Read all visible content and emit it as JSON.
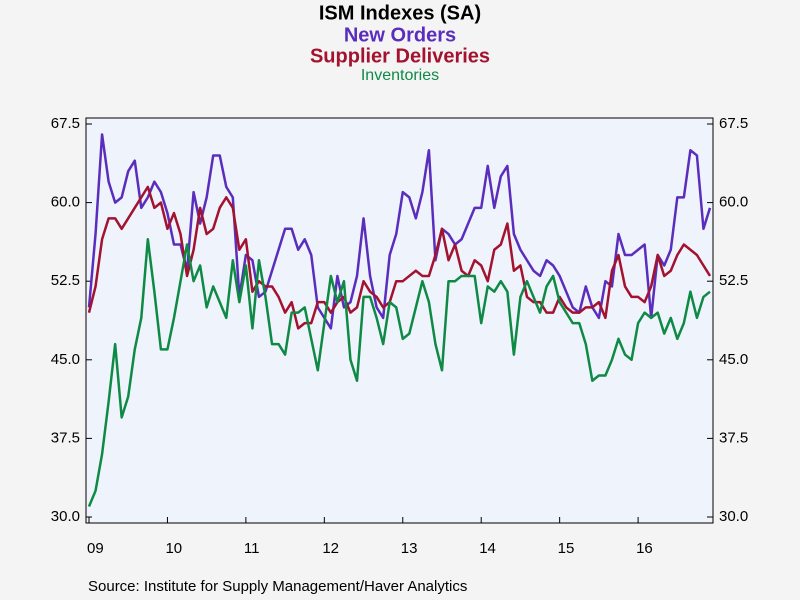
{
  "chart_data": {
    "type": "line",
    "title": "ISM Indexes (SA)",
    "source": "Source:  Institute for Supply Management/Haver Analytics",
    "categories": [
      "09",
      null,
      null,
      null,
      null,
      null,
      null,
      null,
      null,
      null,
      null,
      null,
      "10",
      null,
      null,
      null,
      null,
      null,
      null,
      null,
      null,
      null,
      null,
      null,
      "11",
      null,
      null,
      null,
      null,
      null,
      null,
      null,
      null,
      null,
      null,
      null,
      "12",
      null,
      null,
      null,
      null,
      null,
      null,
      null,
      null,
      null,
      null,
      null,
      "13",
      null,
      null,
      null,
      null,
      null,
      null,
      null,
      null,
      null,
      null,
      null,
      "14",
      null,
      null,
      null,
      null,
      null,
      null,
      null,
      null,
      null,
      null,
      null,
      "15",
      null,
      null,
      null,
      null,
      null,
      null,
      null,
      null,
      null,
      null,
      null,
      "16",
      null,
      null,
      null,
      null,
      null,
      null,
      null,
      null,
      null,
      null,
      null
    ],
    "series": [
      {
        "name": "New Orders",
        "color": "#5a2dbd",
        "values": [
          50,
          57,
          66.5,
          62,
          60,
          60.5,
          63,
          64,
          59.5,
          60.5,
          62,
          61,
          59,
          56,
          56,
          53.5,
          61,
          58,
          60.5,
          64.5,
          64.5,
          61.5,
          60.5,
          51,
          55,
          54.5,
          51,
          51.5,
          53.5,
          55.5,
          57.5,
          57.5,
          55.5,
          56.5,
          55,
          50,
          49,
          48,
          53,
          50,
          50.5,
          53,
          58.5,
          53,
          50,
          49,
          55,
          57,
          61,
          60.5,
          58.5,
          61,
          65,
          54.5,
          57.5,
          57,
          56,
          56.5,
          58,
          59.5,
          59.5,
          63.5,
          59.5,
          62.5,
          63.5,
          57,
          55.5,
          54.5,
          53.5,
          53,
          54.5,
          54,
          53,
          51.5,
          50,
          49.5,
          52,
          50,
          49,
          52.5,
          52,
          57,
          55,
          55,
          55.5,
          56,
          49,
          55,
          54,
          55.5,
          60.5,
          60.5,
          65,
          64.5,
          57.5,
          59.5
        ]
      },
      {
        "name": "Supplier Deliveries",
        "color": "#a3122e",
        "values": [
          49.5,
          52,
          56.5,
          58.5,
          58.5,
          57.5,
          58.5,
          59.5,
          60.5,
          61.5,
          59.5,
          60,
          57.5,
          59,
          57,
          53,
          55.5,
          59.5,
          57,
          57.5,
          59.5,
          60.5,
          59.5,
          55.5,
          56.5,
          51.5,
          52.5,
          52,
          52,
          51,
          49.5,
          50.5,
          48,
          48.5,
          48.5,
          50.5,
          50.5,
          49.5,
          50.5,
          51,
          49.5,
          50,
          52.5,
          51.5,
          51,
          50,
          50.5,
          52.5,
          52.5,
          53,
          53.5,
          53,
          53,
          55,
          57.5,
          54.5,
          56,
          53.5,
          53,
          54.5,
          54,
          52.5,
          55.5,
          56,
          58,
          53.5,
          54,
          51,
          50.5,
          50.5,
          49.5,
          49.5,
          51,
          50,
          49.5,
          49.5,
          50,
          50,
          50.5,
          49,
          53.5,
          55,
          52,
          51,
          51,
          50.5,
          52,
          55,
          53,
          53.5,
          55,
          56,
          55.5,
          55,
          54,
          53
        ]
      },
      {
        "name": "Inventories",
        "color": "#0f8a45",
        "values": [
          31,
          32.5,
          36,
          41,
          46.5,
          39.5,
          41.5,
          46,
          49,
          56.5,
          51.5,
          46,
          46,
          49,
          52.5,
          56,
          52.5,
          54,
          50,
          52,
          50.5,
          49,
          54.5,
          50.5,
          54,
          48,
          54.5,
          51,
          46.5,
          46.5,
          45.5,
          49.5,
          49.5,
          50,
          47,
          44,
          48.5,
          53,
          50.5,
          52.5,
          45,
          43,
          51,
          51,
          49,
          46.5,
          50.5,
          50,
          47,
          47.5,
          50,
          52.5,
          50.5,
          46.5,
          44,
          52.5,
          52.5,
          53,
          53,
          53,
          48.5,
          52,
          51.5,
          52.5,
          51.5,
          45.5,
          51,
          52.5,
          51,
          49.5,
          52,
          53,
          50.5,
          49.5,
          48.5,
          48.5,
          46.5,
          43,
          43.5,
          43.5,
          45,
          47,
          45.5,
          45,
          48.5,
          49.5,
          49,
          49.5,
          47.5,
          49,
          47,
          48.5,
          51.5,
          49,
          51,
          51.5
        ]
      }
    ],
    "ylim": [
      30,
      67.5
    ],
    "yticks": [
      {
        "value": 30,
        "label": "30.0"
      },
      37.5,
      {
        "value": 45,
        "label": "45.0"
      },
      52.5,
      {
        "value": 60,
        "label": "60.0"
      },
      67.5
    ],
    "y2lim": [
      30,
      67.5
    ],
    "y2ticks": [
      {
        "value": 30,
        "label": "30.0"
      },
      37.5,
      {
        "value": 45,
        "label": "45.0"
      },
      52.5,
      {
        "value": 60,
        "label": "60.0"
      },
      67.5
    ],
    "grid": false
  }
}
